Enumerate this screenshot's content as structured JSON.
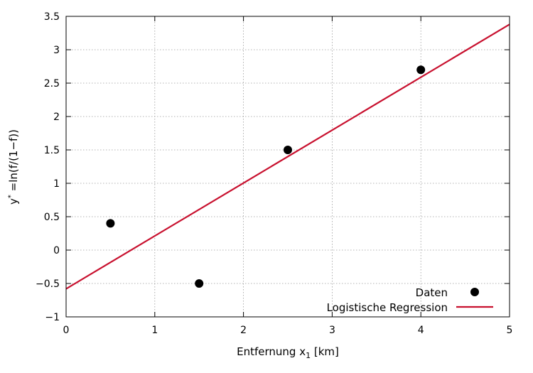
{
  "chart_data": {
    "type": "scatter",
    "xlabel": {
      "main": "Entfernung x",
      "sub": "1",
      "unit": " [km]"
    },
    "ylabel": {
      "base": "y",
      "sup": "*",
      "rest": " =ln(f/(1−f))"
    },
    "xlim": [
      0,
      5
    ],
    "ylim": [
      -1,
      3.5
    ],
    "xticks": [
      0,
      1,
      2,
      3,
      4,
      5
    ],
    "xtick_labels": [
      "0",
      "1",
      "2",
      "3",
      "4",
      "5"
    ],
    "yticks": [
      -1,
      -0.5,
      0,
      0.5,
      1,
      1.5,
      2,
      2.5,
      3,
      3.5
    ],
    "ytick_labels": [
      "−1",
      "−0.5",
      "0",
      "0.5",
      "1",
      "1.5",
      "2",
      "2.5",
      "3",
      "3.5"
    ],
    "grid": true,
    "legend_position": "bottom-right",
    "series": [
      {
        "name": "Daten",
        "kind": "points",
        "color": "#000000",
        "points": [
          {
            "x": 0.5,
            "y": 0.4
          },
          {
            "x": 1.5,
            "y": -0.5
          },
          {
            "x": 2.5,
            "y": 1.5
          },
          {
            "x": 4.0,
            "y": 2.7
          }
        ]
      },
      {
        "name": "Logistische Regression",
        "kind": "line",
        "color": "#c8102e",
        "points": [
          {
            "x": 0,
            "y": -0.58
          },
          {
            "x": 5,
            "y": 3.38
          }
        ]
      }
    ]
  }
}
